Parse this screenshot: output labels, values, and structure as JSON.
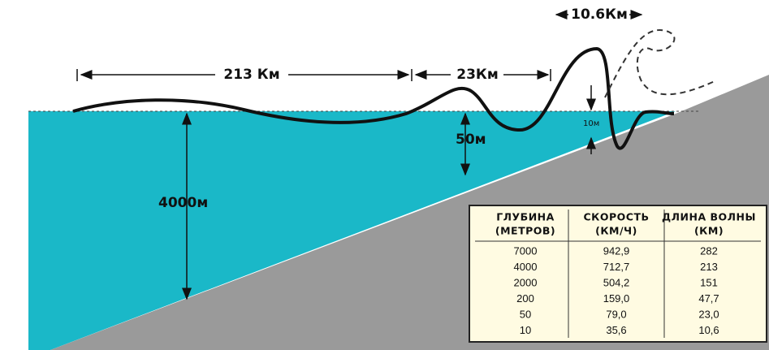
{
  "labels": {
    "crest_length": "10.6Км",
    "open_ocean_length": "213 Км",
    "shelf_length": "23Км",
    "near_shore_height": "10м",
    "shelf_depth": "50м",
    "ocean_depth": "4000м"
  },
  "table": {
    "header": [
      [
        "ГЛУБИНА",
        "(МЕТРОВ)"
      ],
      [
        "СКОРОСТЬ",
        "(КМ/Ч)"
      ],
      [
        "ДЛИНА ВОЛНЫ",
        "(КМ)"
      ]
    ],
    "rows": [
      [
        "7000",
        "942,9",
        "282"
      ],
      [
        "4000",
        "712,7",
        "213"
      ],
      [
        "2000",
        "504,2",
        "151"
      ],
      [
        "200",
        "159,0",
        "47,7"
      ],
      [
        "50",
        "79,0",
        "23,0"
      ],
      [
        "10",
        "35,6",
        "10,6"
      ]
    ]
  }
}
